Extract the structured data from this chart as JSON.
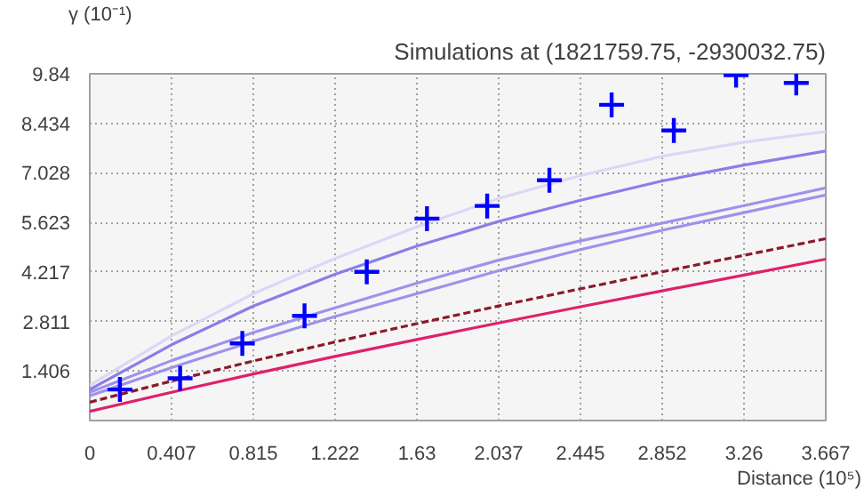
{
  "chart_data": {
    "type": "line",
    "title": "Simulations at (1821759.75, -2930032.75)",
    "xlabel": "Distance (10⁵)",
    "ylabel": "γ (10⁻¹)",
    "x": [
      0,
      0.407,
      0.815,
      1.222,
      1.63,
      2.037,
      2.445,
      2.852,
      3.26,
      3.667
    ],
    "series": [
      {
        "color": "#ddd6f7",
        "values": [
          1.0,
          2.4,
          3.6,
          4.6,
          5.5,
          6.3,
          6.95,
          7.5,
          7.9,
          8.2
        ]
      },
      {
        "color": "#9d92ec",
        "values": [
          0.7,
          1.5,
          2.25,
          2.95,
          3.6,
          4.25,
          4.85,
          5.4,
          5.9,
          6.4
        ]
      },
      {
        "color": "#9d92ec",
        "values": [
          0.8,
          1.7,
          2.5,
          3.2,
          3.9,
          4.55,
          5.1,
          5.6,
          6.1,
          6.6
        ]
      },
      {
        "color": "#8a7ee8",
        "values": [
          0.88,
          2.15,
          3.25,
          4.15,
          4.95,
          5.65,
          6.25,
          6.8,
          7.25,
          7.65
        ]
      },
      {
        "color": "#e0206a",
        "values": [
          0.26,
          0.8,
          1.32,
          1.82,
          2.3,
          2.77,
          3.23,
          3.68,
          4.13,
          4.58
        ]
      },
      {
        "color": "#8b1a2a",
        "line_style": "dashed",
        "values": [
          0.52,
          1.12,
          1.69,
          2.23,
          2.75,
          3.25,
          3.74,
          4.22,
          4.69,
          5.16
        ]
      },
      {
        "type": "scatter",
        "marker": "cross",
        "color": "#0000ff",
        "x": [
          0.15,
          0.45,
          0.76,
          1.07,
          1.38,
          1.68,
          1.98,
          2.29,
          2.6,
          2.91,
          3.22,
          3.52
        ],
        "values": [
          0.88,
          1.2,
          2.19,
          2.97,
          4.22,
          5.73,
          6.09,
          6.82,
          8.96,
          8.23,
          9.8,
          9.58
        ]
      }
    ],
    "xlim": [
      0,
      3.667
    ],
    "ylim": [
      0,
      9.84
    ],
    "xticks": [
      0,
      0.407,
      0.815,
      1.222,
      1.63,
      2.037,
      2.445,
      2.852,
      3.26,
      3.667
    ],
    "yticks": [
      1.406,
      2.811,
      4.217,
      5.623,
      7.028,
      8.434,
      9.84
    ],
    "grid": true
  }
}
